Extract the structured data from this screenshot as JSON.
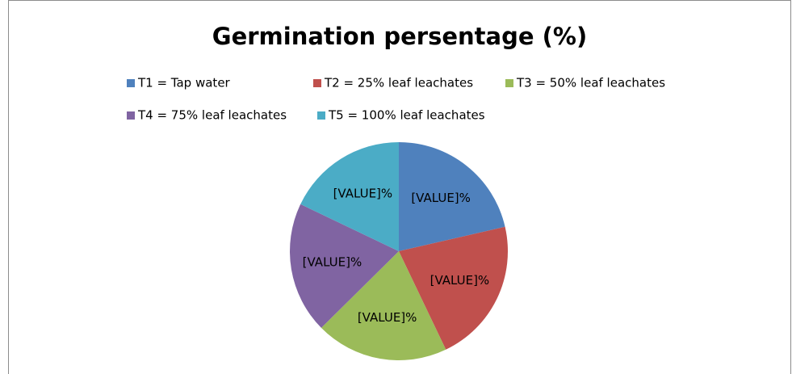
{
  "chart_data": {
    "type": "pie",
    "title": "Germination persentage (%)",
    "categories": [
      "T1 = Tap water",
      "T2 = 25% leaf leachates",
      "T3 = 50% leaf leachates",
      "T4 = 75% leaf leachates",
      "T5 = 100% leaf leachates"
    ],
    "values": [
      21.4,
      21.5,
      19.7,
      19.5,
      17.9
    ],
    "value_labels": [
      "[VALUE]%",
      "[VALUE]%",
      "[VALUE]%",
      "[VALUE]%",
      "[VALUE]%"
    ],
    "colors": [
      "#4f81bd",
      "#c0504d",
      "#9bbb59",
      "#8064a2",
      "#4bacc6"
    ],
    "legend": "top"
  }
}
